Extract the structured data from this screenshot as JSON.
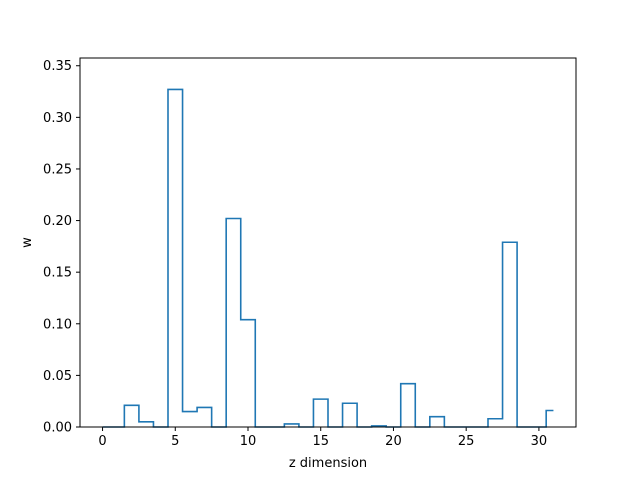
{
  "chart_data": {
    "type": "step",
    "xlabel": "z dimension",
    "ylabel": "w",
    "xlim": [
      -1.55,
      32.55
    ],
    "ylim": [
      0,
      0.3575
    ],
    "xticks": [
      0,
      5,
      10,
      15,
      20,
      25,
      30
    ],
    "yticks": [
      0.0,
      0.05,
      0.1,
      0.15,
      0.2,
      0.25,
      0.3,
      0.35
    ],
    "ytick_labels": [
      "0.00",
      "0.05",
      "0.10",
      "0.15",
      "0.20",
      "0.25",
      "0.30",
      "0.35"
    ],
    "grid": false,
    "series": [
      {
        "color": "#1f77b4",
        "x": [
          0,
          1,
          2,
          3,
          4,
          5,
          6,
          7,
          8,
          9,
          10,
          11,
          12,
          13,
          14,
          15,
          16,
          17,
          18,
          19,
          20,
          21,
          22,
          23,
          24,
          25,
          26,
          27,
          28,
          29,
          30,
          31
        ],
        "values": [
          0.0,
          0.0,
          0.021,
          0.005,
          0.0,
          0.327,
          0.015,
          0.019,
          0.0,
          0.202,
          0.104,
          0.0,
          0.0,
          0.003,
          0.0,
          0.027,
          0.0,
          0.023,
          0.0,
          0.001,
          0.0,
          0.042,
          0.0,
          0.01,
          0.0,
          0.0,
          0.0,
          0.008,
          0.179,
          0.0,
          0.0,
          0.016
        ]
      }
    ]
  }
}
